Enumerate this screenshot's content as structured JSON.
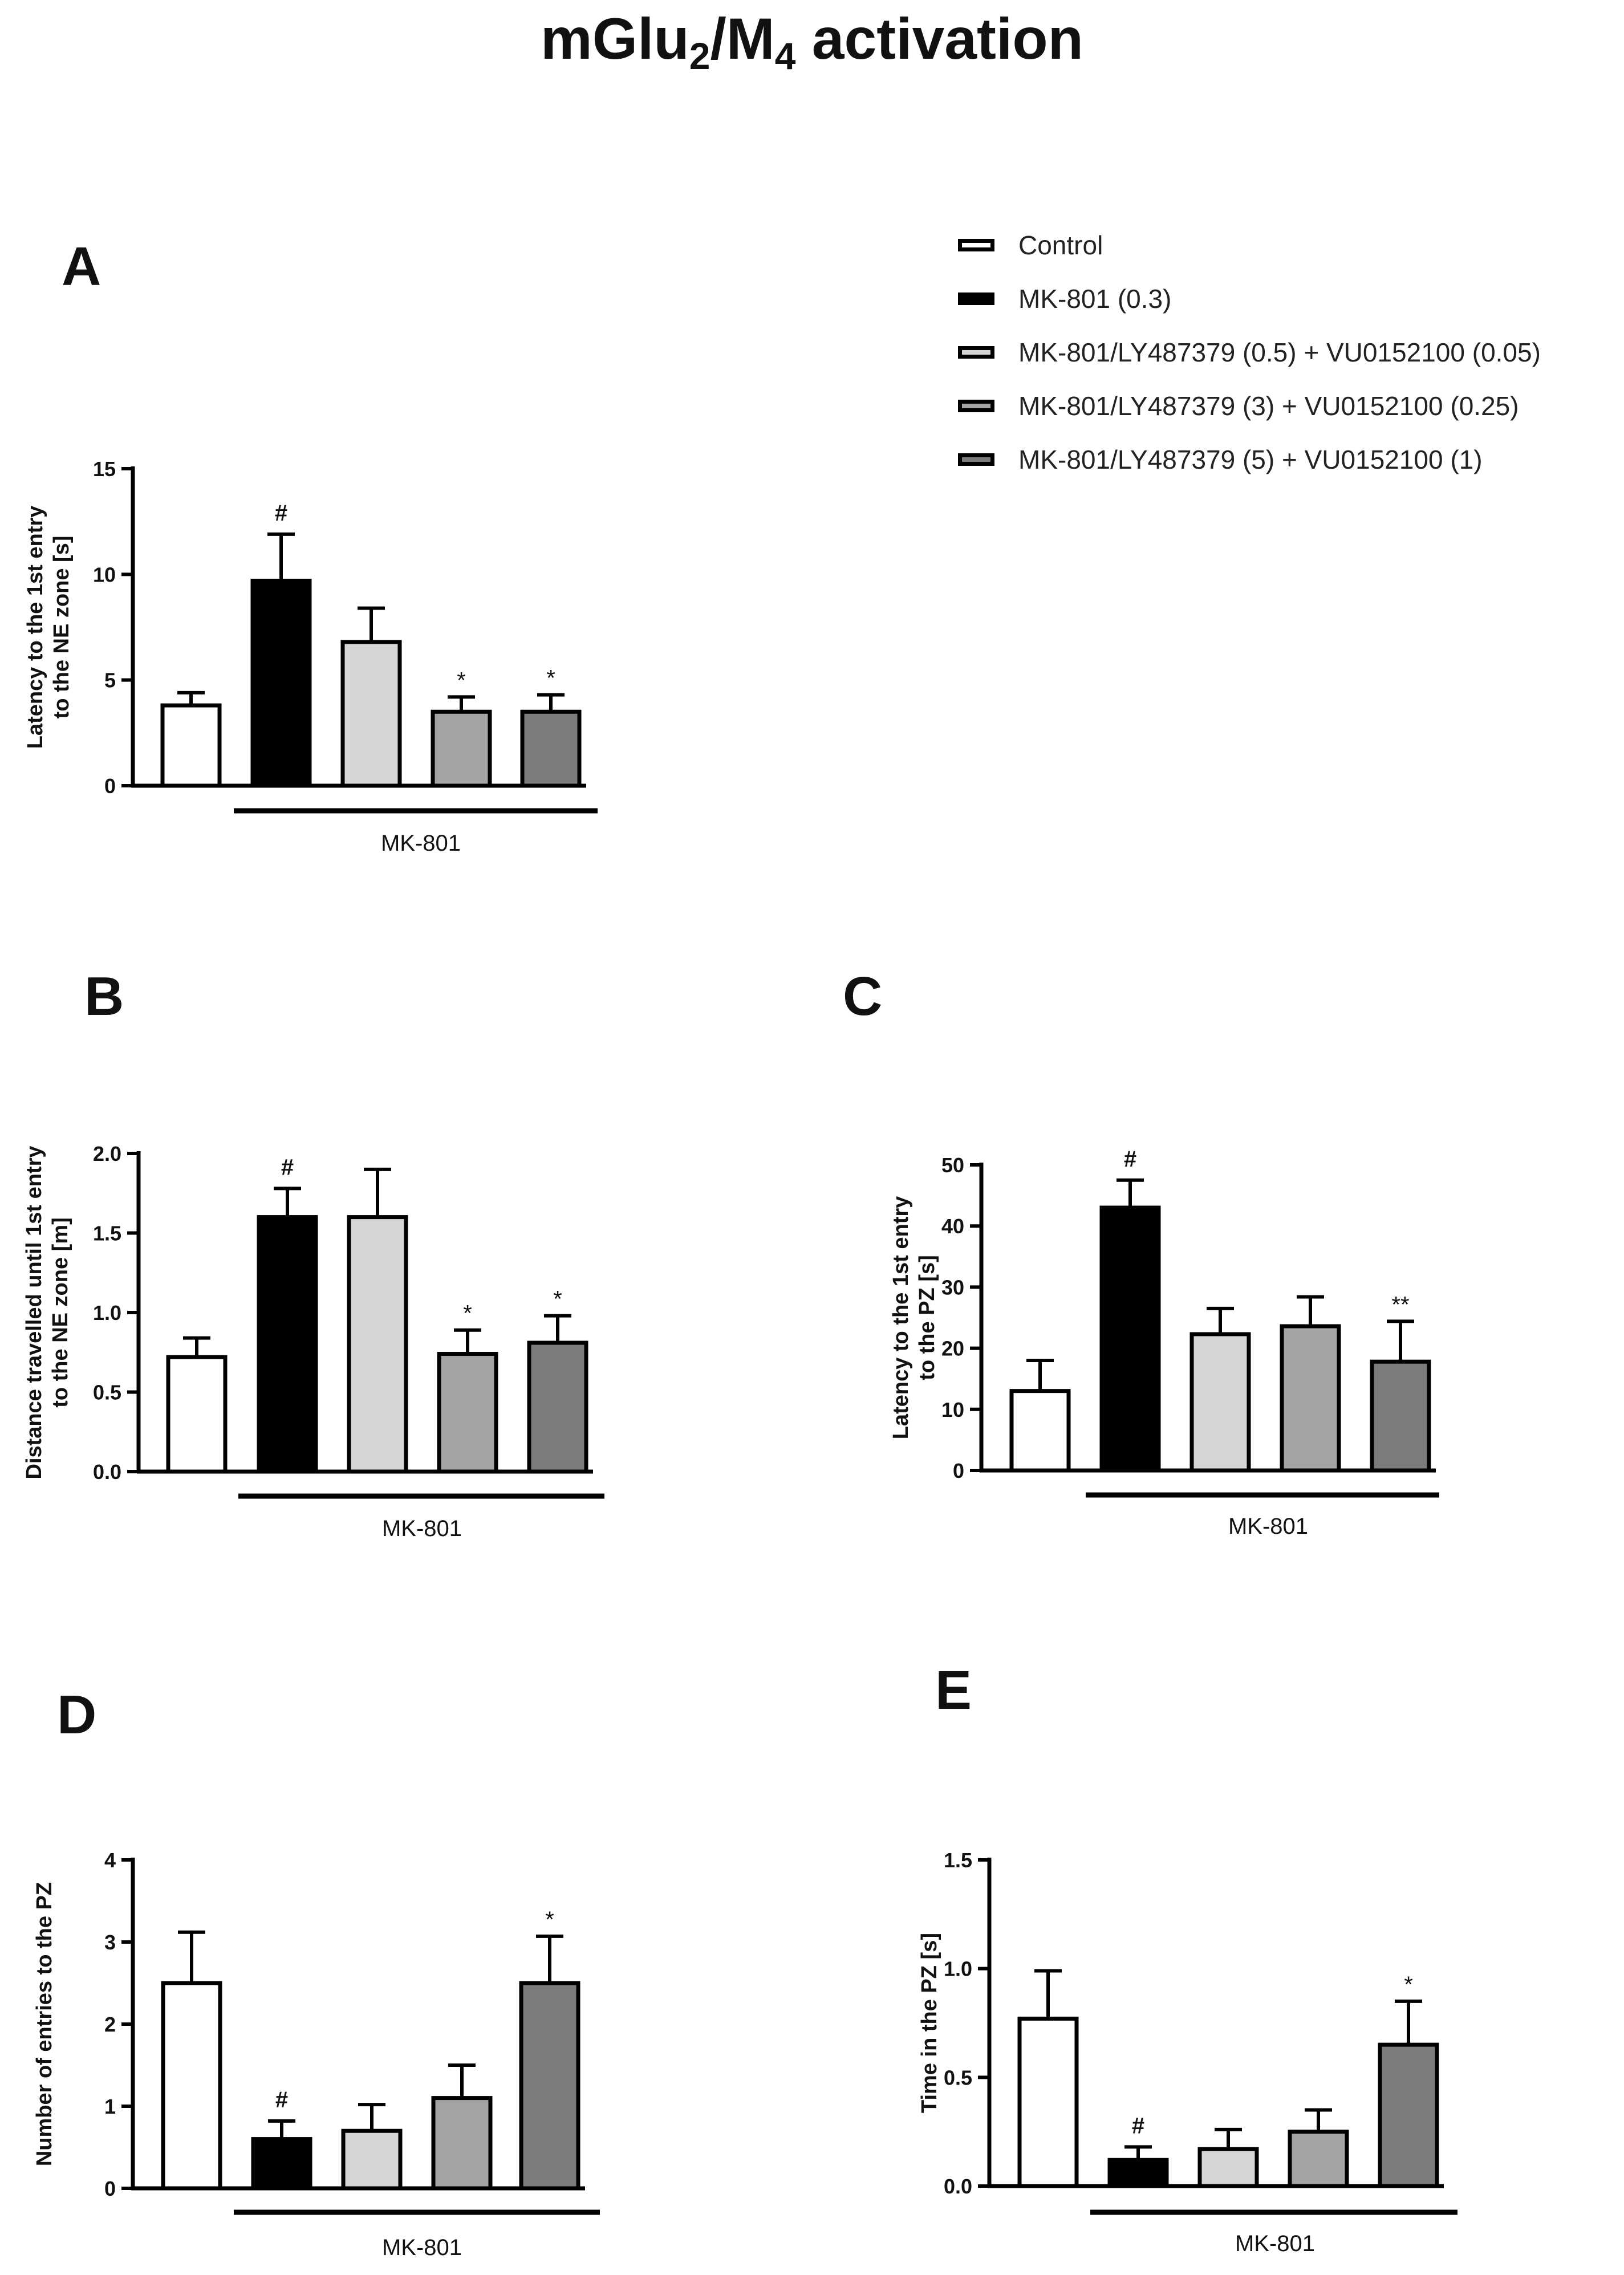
{
  "title": {
    "main": "mGlu",
    "sub1": "2",
    "sep": "/M",
    "sub2": "4",
    "rest": " activation"
  },
  "colors": {
    "control": "#ffffff",
    "mk801": "#000000",
    "dose_low": "#d6d6d6",
    "dose_mid": "#a4a4a6",
    "dose_high": "#7c7c7c",
    "axis": "#000000"
  },
  "legend": [
    {
      "label": "Control",
      "color": "#ffffff"
    },
    {
      "label": "MK-801 (0.3)",
      "color": "#000000"
    },
    {
      "label": "MK-801/LY487379 (0.5) + VU0152100 (0.05)",
      "color": "#d6d6d6"
    },
    {
      "label": "MK-801/LY487379 (3) + VU0152100 (0.25)",
      "color": "#a4a4a6"
    },
    {
      "label": "MK-801/LY487379 (5) + VU0152100 (1)",
      "color": "#7c7c7c"
    }
  ],
  "chart_data": [
    {
      "panel": "A",
      "type": "bar",
      "ylabel": [
        "Latency to the 1st entry",
        "to the NE zone [s]"
      ],
      "xlabel": "MK-801",
      "ylim": [
        0,
        15
      ],
      "yticks": [
        0,
        5,
        10,
        15
      ],
      "tick_labels": [
        "0",
        "5",
        "10",
        "15"
      ],
      "categories": [
        "Control",
        "MK-801 (0.3)",
        "MK-801/LY487379 (0.5) + VU0152100 (0.05)",
        "MK-801/LY487379 (3) + VU0152100 (0.25)",
        "MK-801/LY487379 (5) + VU0152100 (1)"
      ],
      "values": [
        3.8,
        9.7,
        6.8,
        3.5,
        3.5
      ],
      "errors": [
        0.6,
        2.2,
        1.6,
        0.7,
        0.8
      ],
      "annotations": [
        "",
        "#",
        "",
        "*",
        "*"
      ]
    },
    {
      "panel": "B",
      "type": "bar",
      "ylabel": [
        "Distance travelled until 1st entry",
        "to the NE zone [m]"
      ],
      "xlabel": "MK-801",
      "ylim": [
        0,
        2
      ],
      "yticks": [
        0,
        0.5,
        1,
        1.5,
        2
      ],
      "tick_labels": [
        "0.0",
        "0.5",
        "1.0",
        "1.5",
        "2.0"
      ],
      "categories": [
        "Control",
        "MK-801 (0.3)",
        "MK-801/LY487379 (0.5) + VU0152100 (0.05)",
        "MK-801/LY487379 (3) + VU0152100 (0.25)",
        "MK-801/LY487379 (5) + VU0152100 (1)"
      ],
      "values": [
        0.72,
        1.6,
        1.6,
        0.74,
        0.81
      ],
      "errors": [
        0.12,
        0.18,
        0.3,
        0.15,
        0.17
      ],
      "annotations": [
        "",
        "#",
        "",
        "*",
        "*"
      ]
    },
    {
      "panel": "C",
      "type": "bar",
      "ylabel": [
        "Latency to the 1st entry",
        "to the PZ [s]"
      ],
      "xlabel": "MK-801",
      "ylim": [
        0,
        50
      ],
      "yticks": [
        0,
        10,
        20,
        30,
        40,
        50
      ],
      "tick_labels": [
        "0",
        "10",
        "20",
        "30",
        "40",
        "50"
      ],
      "categories": [
        "Control",
        "MK-801 (0.3)",
        "MK-801/LY487379 (0.5) + VU0152100 (0.05)",
        "MK-801/LY487379 (3) + VU0152100 (0.25)",
        "MK-801/LY487379 (5) + VU0152100 (1)"
      ],
      "values": [
        13,
        43,
        22.3,
        23.6,
        17.8
      ],
      "errors": [
        5,
        4.5,
        4.2,
        4.8,
        6.6
      ],
      "annotations": [
        "",
        "#",
        "",
        "",
        "**"
      ]
    },
    {
      "panel": "D",
      "type": "bar",
      "ylabel": [
        "Number of entries to the PZ"
      ],
      "xlabel": "MK-801",
      "ylim": [
        0,
        4
      ],
      "yticks": [
        0,
        1,
        2,
        3,
        4
      ],
      "tick_labels": [
        "0",
        "1",
        "2",
        "3",
        "4"
      ],
      "categories": [
        "Control",
        "MK-801 (0.3)",
        "MK-801/LY487379 (0.5) + VU0152100 (0.05)",
        "MK-801/LY487379 (3) + VU0152100 (0.25)",
        "MK-801/LY487379 (5) + VU0152100 (1)"
      ],
      "values": [
        2.5,
        0.6,
        0.7,
        1.1,
        2.5
      ],
      "errors": [
        0.62,
        0.22,
        0.32,
        0.4,
        0.57
      ],
      "annotations": [
        "",
        "#",
        "",
        "",
        "*"
      ]
    },
    {
      "panel": "E",
      "type": "bar",
      "ylabel": [
        "Time in the PZ [s]"
      ],
      "xlabel": "MK-801",
      "ylim": [
        0,
        1.5
      ],
      "yticks": [
        0,
        0.5,
        1,
        1.5
      ],
      "tick_labels": [
        "0.0",
        "0.5",
        "1.0",
        "1.5"
      ],
      "categories": [
        "Control",
        "MK-801 (0.3)",
        "MK-801/LY487379 (0.5) + VU0152100 (0.05)",
        "MK-801/LY487379 (3) + VU0152100 (0.25)",
        "MK-801/LY487379 (5) + VU0152100 (1)"
      ],
      "values": [
        0.77,
        0.12,
        0.17,
        0.25,
        0.65
      ],
      "errors": [
        0.22,
        0.06,
        0.09,
        0.1,
        0.2
      ],
      "annotations": [
        "",
        "#",
        "",
        "",
        "*"
      ]
    }
  ]
}
